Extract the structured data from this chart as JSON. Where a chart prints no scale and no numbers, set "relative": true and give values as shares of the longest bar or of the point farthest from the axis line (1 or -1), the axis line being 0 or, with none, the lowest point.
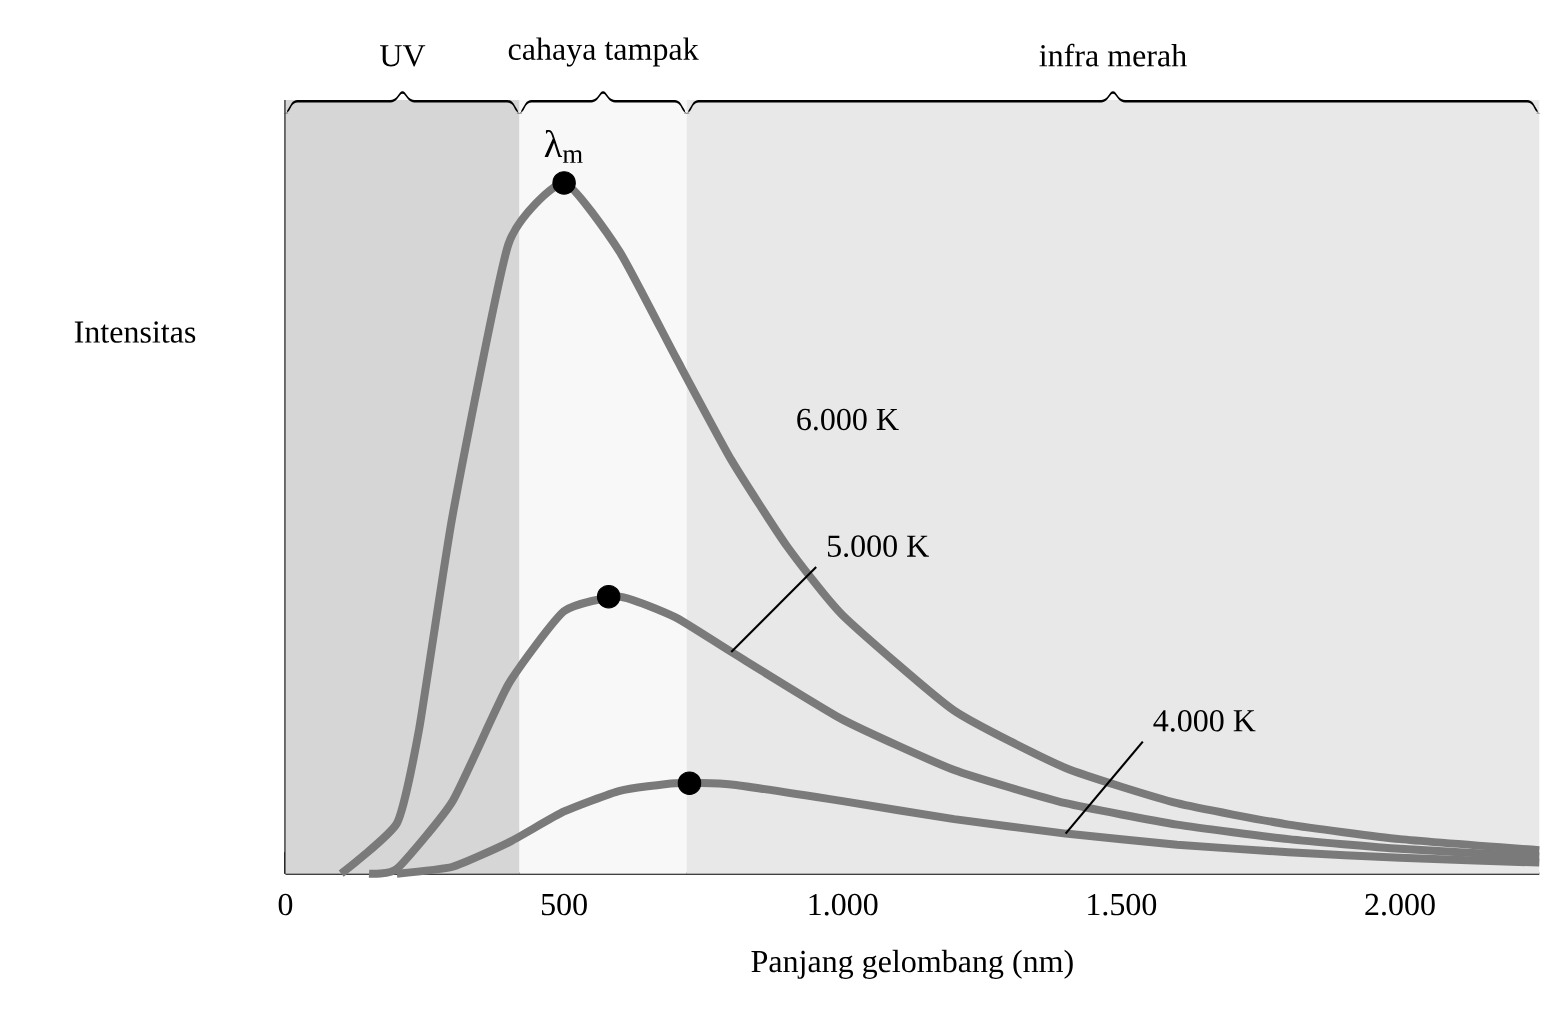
{
  "chart_data": {
    "type": "line",
    "relative": true,
    "xlabel": "Panjang gelombang (nm)",
    "ylabel": "Intensitas",
    "xlim": [
      0,
      2250
    ],
    "xticks": [
      0,
      500,
      {
        "value": 1000,
        "label": "1.000"
      },
      {
        "value": 1500,
        "label": "1.500"
      },
      {
        "value": 2000,
        "label": "2.000"
      }
    ],
    "bands": [
      {
        "axis": "x",
        "from": 0,
        "to": 420,
        "label": "UV",
        "color": "#d6d6d6"
      },
      {
        "axis": "x",
        "from": 420,
        "to": 720,
        "label": "cahaya tampak",
        "color": "#f8f8f8"
      },
      {
        "axis": "x",
        "from": 720,
        "to": 2250,
        "label": "infra merah",
        "color": "#e8e8e8"
      }
    ],
    "series": [
      {
        "name": "6.000 K",
        "color": "#7a7a7a",
        "x": [
          100,
          200,
          240,
          300,
          400,
          500,
          600,
          700,
          800,
          900,
          1000,
          1200,
          1400,
          1600,
          1800,
          2000,
          2250
        ],
        "values": [
          0,
          0.073,
          0.21,
          0.519,
          0.911,
          1,
          0.9,
          0.748,
          0.599,
          0.474,
          0.374,
          0.236,
          0.153,
          0.102,
          0.071,
          0.05,
          0.034
        ]
      },
      {
        "name": "5.000 K",
        "color": "#7a7a7a",
        "x": [
          150,
          200,
          300,
          400,
          500,
          600,
          700,
          800,
          1000,
          1200,
          1400,
          1600,
          1800,
          2000,
          2250
        ],
        "values": [
          0,
          0.007,
          0.105,
          0.274,
          0.38,
          0.401,
          0.371,
          0.321,
          0.223,
          0.15,
          0.102,
          0.071,
          0.05,
          0.036,
          0.025
        ]
      },
      {
        "name": "4.000 K",
        "color": "#7a7a7a",
        "x": [
          200,
          300,
          400,
          500,
          600,
          700,
          800,
          1000,
          1200,
          1400,
          1600,
          1800,
          2000,
          2250
        ],
        "values": [
          0,
          0.01,
          0.045,
          0.09,
          0.12,
          0.131,
          0.129,
          0.105,
          0.079,
          0.058,
          0.042,
          0.031,
          0.023,
          0.016
        ]
      },
      {
        "type": "scatter",
        "color": "#000000",
        "x": [
          500,
          580,
          725
        ],
        "values": [
          1,
          0.401,
          0.131
        ]
      }
    ],
    "annotations": [
      {
        "text": "λ$_{m}$",
        "x": 500,
        "y": 1
      }
    ]
  }
}
